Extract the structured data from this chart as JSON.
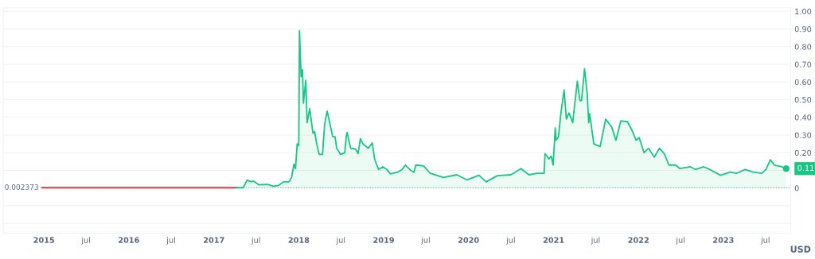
{
  "chart_data": {
    "type": "area",
    "xlim": [
      "2014-07-10",
      "2023-10-17"
    ],
    "xticks": [
      {
        "value": "2015-01-01",
        "label": "2015"
      },
      {
        "value": "2015-07-01",
        "label": "jul"
      },
      {
        "value": "2016-01-01",
        "label": "2016"
      },
      {
        "value": "2016-07-01",
        "label": "jul"
      },
      {
        "value": "2017-01-01",
        "label": "2017"
      },
      {
        "value": "2017-07-01",
        "label": "jul"
      },
      {
        "value": "2018-01-01",
        "label": "2018"
      },
      {
        "value": "2018-07-01",
        "label": "jul"
      },
      {
        "value": "2019-01-01",
        "label": "2019"
      },
      {
        "value": "2019-07-01",
        "label": "jul"
      },
      {
        "value": "2020-01-01",
        "label": "2020"
      },
      {
        "value": "2020-07-01",
        "label": "jul"
      },
      {
        "value": "2021-01-01",
        "label": "2021"
      },
      {
        "value": "2021-07-01",
        "label": "jul"
      },
      {
        "value": "2022-01-01",
        "label": "2022"
      },
      {
        "value": "2022-07-01",
        "label": "jul"
      },
      {
        "value": "2023-01-01",
        "label": "2023"
      },
      {
        "value": "2023-07-01",
        "label": "jul"
      }
    ],
    "ylim": [
      -0.255,
      1.02
    ],
    "yticks": [
      {
        "value": -0.2,
        "label": null
      },
      {
        "value": -0.1,
        "label": null
      },
      0,
      {
        "value": 0.1,
        "label": null
      },
      {
        "value": 0.2,
        "label": "0.20"
      },
      {
        "value": 0.3,
        "label": "0.30"
      },
      {
        "value": 0.4,
        "label": "0.40"
      },
      {
        "value": 0.5,
        "label": "0.50"
      },
      {
        "value": 0.6,
        "label": "0.60"
      },
      {
        "value": 0.7,
        "label": "0.70"
      },
      {
        "value": 0.8,
        "label": "0.80"
      },
      {
        "value": 0.9,
        "label": "0.90"
      },
      {
        "value": 1.0,
        "label": "1.00"
      }
    ],
    "grid": "y",
    "ref_lines": [
      {
        "axis": "y",
        "value": 0.002373,
        "label": "0.002373",
        "color": "#a6b0c3",
        "line_style": "dotted"
      }
    ],
    "annotations": [
      {
        "text": "0.11",
        "x": "2023-09-28",
        "y": 0.11
      },
      "USD"
    ],
    "series": [
      {
        "type": "line",
        "color": "#ea3943",
        "x": [
          "2014-12-24",
          "2015-09-01",
          "2016-06-01",
          "2017-04-07"
        ],
        "values": [
          0.002,
          0.002,
          0.002,
          0.002
        ]
      },
      {
        "color": "#16c784",
        "x": [
          "2017-04-07",
          "2017-05-07",
          "2017-05-24",
          "2017-06-10",
          "2017-06-20",
          "2017-07-14",
          "2017-08-20",
          "2017-09-13",
          "2017-10-07",
          "2017-10-27",
          "2017-11-20",
          "2017-12-01",
          "2017-12-11",
          "2017-12-18",
          "2017-12-25",
          "2018-01-01",
          "2018-01-04",
          "2018-01-11",
          "2018-01-17",
          "2018-01-21",
          "2018-01-31",
          "2018-02-06",
          "2018-02-17",
          "2018-03-03",
          "2018-03-10",
          "2018-03-19",
          "2018-03-30",
          "2018-04-13",
          "2018-04-22",
          "2018-05-03",
          "2018-05-27",
          "2018-06-06",
          "2018-06-13",
          "2018-06-30",
          "2018-07-18",
          "2018-07-24",
          "2018-07-28",
          "2018-08-12",
          "2018-09-03",
          "2018-09-13",
          "2018-09-23",
          "2018-10-04",
          "2018-10-27",
          "2018-11-13",
          "2018-11-23",
          "2018-12-10",
          "2018-12-28",
          "2019-01-15",
          "2019-01-30",
          "2019-03-03",
          "2019-03-21",
          "2019-04-05",
          "2019-04-27",
          "2019-05-12",
          "2019-05-19",
          "2019-06-22",
          "2019-07-19",
          "2019-09-15",
          "2019-11-12",
          "2019-12-26",
          "2020-02-15",
          "2020-03-17",
          "2020-05-04",
          "2020-07-01",
          "2020-08-14",
          "2020-09-17",
          "2020-10-21",
          "2020-11-21",
          "2020-11-25",
          "2020-12-12",
          "2020-12-22",
          "2020-12-30",
          "2021-01-08",
          "2021-01-12",
          "2021-01-22",
          "2021-02-01",
          "2021-02-15",
          "2021-02-25",
          "2021-03-08",
          "2021-03-24",
          "2021-04-13",
          "2021-04-24",
          "2021-05-01",
          "2021-05-14",
          "2021-05-25",
          "2021-06-01",
          "2021-06-05",
          "2021-06-23",
          "2021-07-20",
          "2021-08-13",
          "2021-09-08",
          "2021-09-26",
          "2021-10-17",
          "2021-11-15",
          "2021-12-03",
          "2021-12-22",
          "2022-01-04",
          "2022-01-25",
          "2022-02-13",
          "2022-03-10",
          "2022-04-01",
          "2022-04-22",
          "2022-05-12",
          "2022-06-10",
          "2022-06-28",
          "2022-08-12",
          "2022-09-03",
          "2022-10-09",
          "2022-11-11",
          "2022-12-20",
          "2023-01-31",
          "2023-02-26",
          "2023-04-04",
          "2023-05-10",
          "2023-06-15",
          "2023-07-03",
          "2023-07-22",
          "2023-08-09",
          "2023-09-10",
          "2023-09-28"
        ],
        "values": [
          0.002,
          0.002,
          0.045,
          0.035,
          0.04,
          0.018,
          0.02,
          0.01,
          0.015,
          0.035,
          0.035,
          0.06,
          0.135,
          0.11,
          0.25,
          0.24,
          0.89,
          0.63,
          0.67,
          0.48,
          0.61,
          0.37,
          0.45,
          0.31,
          0.32,
          0.25,
          0.19,
          0.19,
          0.36,
          0.435,
          0.29,
          0.29,
          0.225,
          0.19,
          0.2,
          0.29,
          0.315,
          0.225,
          0.22,
          0.195,
          0.28,
          0.25,
          0.225,
          0.255,
          0.165,
          0.105,
          0.12,
          0.105,
          0.08,
          0.09,
          0.105,
          0.13,
          0.1,
          0.09,
          0.13,
          0.125,
          0.085,
          0.06,
          0.075,
          0.046,
          0.072,
          0.035,
          0.07,
          0.075,
          0.11,
          0.075,
          0.083,
          0.083,
          0.195,
          0.165,
          0.18,
          0.13,
          0.34,
          0.27,
          0.29,
          0.42,
          0.555,
          0.39,
          0.425,
          0.37,
          0.605,
          0.495,
          0.495,
          0.675,
          0.54,
          0.37,
          0.42,
          0.25,
          0.235,
          0.39,
          0.345,
          0.27,
          0.38,
          0.375,
          0.33,
          0.27,
          0.285,
          0.2,
          0.225,
          0.175,
          0.225,
          0.195,
          0.13,
          0.13,
          0.11,
          0.12,
          0.105,
          0.12,
          0.1,
          0.072,
          0.09,
          0.083,
          0.105,
          0.09,
          0.083,
          0.105,
          0.16,
          0.13,
          0.12,
          0.11
        ]
      }
    ]
  }
}
